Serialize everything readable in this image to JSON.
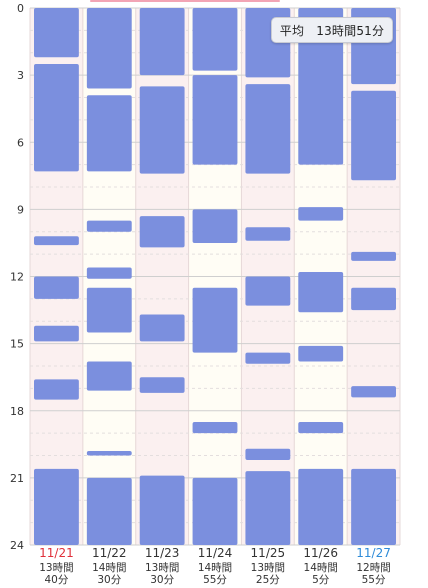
{
  "chart_data": {
    "type": "bar",
    "orientation": "vertical-timeline",
    "y_axis": {
      "min": 0,
      "max": 24,
      "ticks": [
        0,
        3,
        6,
        9,
        12,
        15,
        18,
        21,
        24
      ],
      "reversed": true
    },
    "average": {
      "label": "平均",
      "value": "13時間51分"
    },
    "days": [
      {
        "date": "11/21",
        "weekend": "sun",
        "duration": [
          "13時間",
          "40分"
        ],
        "segments": [
          [
            0,
            2.2
          ],
          [
            2.5,
            7.3
          ],
          [
            10.2,
            10.6
          ],
          [
            12.0,
            13.0
          ],
          [
            14.2,
            14.9
          ],
          [
            16.6,
            17.5
          ],
          [
            20.6,
            24
          ]
        ]
      },
      {
        "date": "11/22",
        "weekend": "",
        "duration": [
          "14時間",
          "30分"
        ],
        "segments": [
          [
            0,
            3.6
          ],
          [
            3.9,
            7.3
          ],
          [
            9.5,
            10.0
          ],
          [
            11.6,
            12.1
          ],
          [
            12.5,
            14.5
          ],
          [
            15.8,
            17.1
          ],
          [
            19.8,
            20.0
          ],
          [
            21.0,
            24
          ]
        ]
      },
      {
        "date": "11/23",
        "weekend": "",
        "duration": [
          "13時間",
          "30分"
        ],
        "segments": [
          [
            0,
            3.0
          ],
          [
            3.5,
            7.4
          ],
          [
            9.3,
            10.7
          ],
          [
            13.7,
            14.9
          ],
          [
            16.5,
            17.2
          ],
          [
            20.9,
            24
          ]
        ]
      },
      {
        "date": "11/24",
        "weekend": "",
        "duration": [
          "14時間",
          "55分"
        ],
        "segments": [
          [
            0,
            2.8
          ],
          [
            3.0,
            7.0
          ],
          [
            9.0,
            10.5
          ],
          [
            12.5,
            15.4
          ],
          [
            18.5,
            19.0
          ],
          [
            21.0,
            24
          ]
        ]
      },
      {
        "date": "11/25",
        "weekend": "",
        "duration": [
          "13時間",
          "25分"
        ],
        "segments": [
          [
            0,
            3.1
          ],
          [
            3.4,
            7.4
          ],
          [
            9.8,
            10.4
          ],
          [
            12.0,
            13.3
          ],
          [
            15.4,
            15.9
          ],
          [
            19.7,
            20.2
          ],
          [
            20.7,
            24
          ]
        ]
      },
      {
        "date": "11/26",
        "weekend": "",
        "duration": [
          "14時間",
          "5分"
        ],
        "segments": [
          [
            0,
            7.0
          ],
          [
            8.9,
            9.5
          ],
          [
            11.8,
            13.6
          ],
          [
            15.1,
            15.8
          ],
          [
            18.5,
            19.0
          ],
          [
            20.6,
            24
          ]
        ]
      },
      {
        "date": "11/27",
        "weekend": "sat",
        "duration": [
          "12時間",
          "55分"
        ],
        "segments": [
          [
            0,
            3.4
          ],
          [
            3.7,
            7.7
          ],
          [
            10.9,
            11.3
          ],
          [
            12.5,
            13.5
          ],
          [
            16.9,
            17.4
          ],
          [
            20.6,
            24
          ]
        ]
      }
    ],
    "colors": {
      "bar": "#7b8fde",
      "weekday_bg": "#fffdf5",
      "weekend_bg": "#fbf0f0",
      "sun_text": "#e0303a",
      "sat_text": "#2e8bd8",
      "weekday_text": "#333333",
      "grid": "#cfcfcf"
    }
  }
}
